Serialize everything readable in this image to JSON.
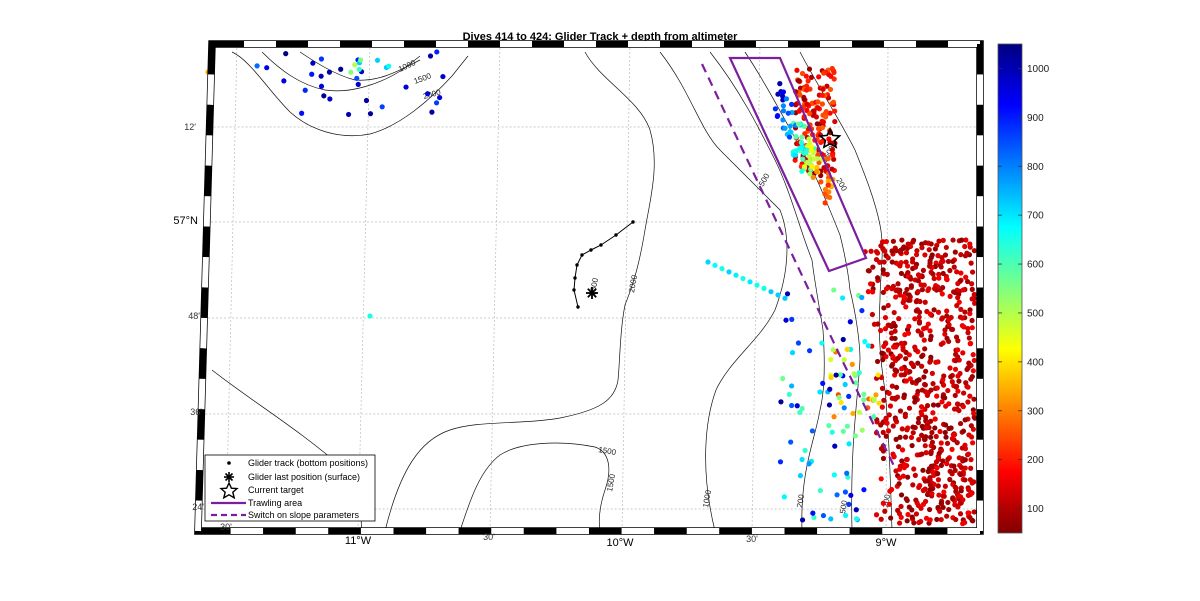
{
  "title": "Dives 414 to 424: Glider Track + depth from altimeter",
  "latitude_labels": [
    "12'",
    "57°N",
    "48'",
    "36'",
    "24'"
  ],
  "longitude_labels": [
    "30'",
    "11°W",
    "30'",
    "10°W",
    "30'",
    "9°W"
  ],
  "contour_levels": [
    "1000",
    "1500",
    "2000",
    "2000",
    "1500",
    "1500",
    "1500",
    "1000",
    "500",
    "200",
    "1500",
    "500",
    "200",
    "200"
  ],
  "colorbar": {
    "ticks": [
      1000,
      900,
      800,
      700,
      600,
      500,
      400,
      300,
      200,
      100
    ],
    "min": 50,
    "max": 1050,
    "colormap": "jet (reversed: low=dark red, high=dark blue)"
  },
  "legend": [
    {
      "symbol": "dot",
      "label": "Glider track (bottom positions)"
    },
    {
      "symbol": "asterisk",
      "label": "Glider last position (surface)"
    },
    {
      "symbol": "star",
      "label": "Current target"
    },
    {
      "symbol": "solid-line",
      "label": "Trawling area",
      "color": "#7b1f9e"
    },
    {
      "symbol": "dashed-line",
      "label": "Switch on slope parameters",
      "color": "#7b1f9e"
    }
  ],
  "colors": {
    "trawl": "#7b1f9e",
    "contour": "#111111",
    "grid": "#b0b0b0"
  }
}
